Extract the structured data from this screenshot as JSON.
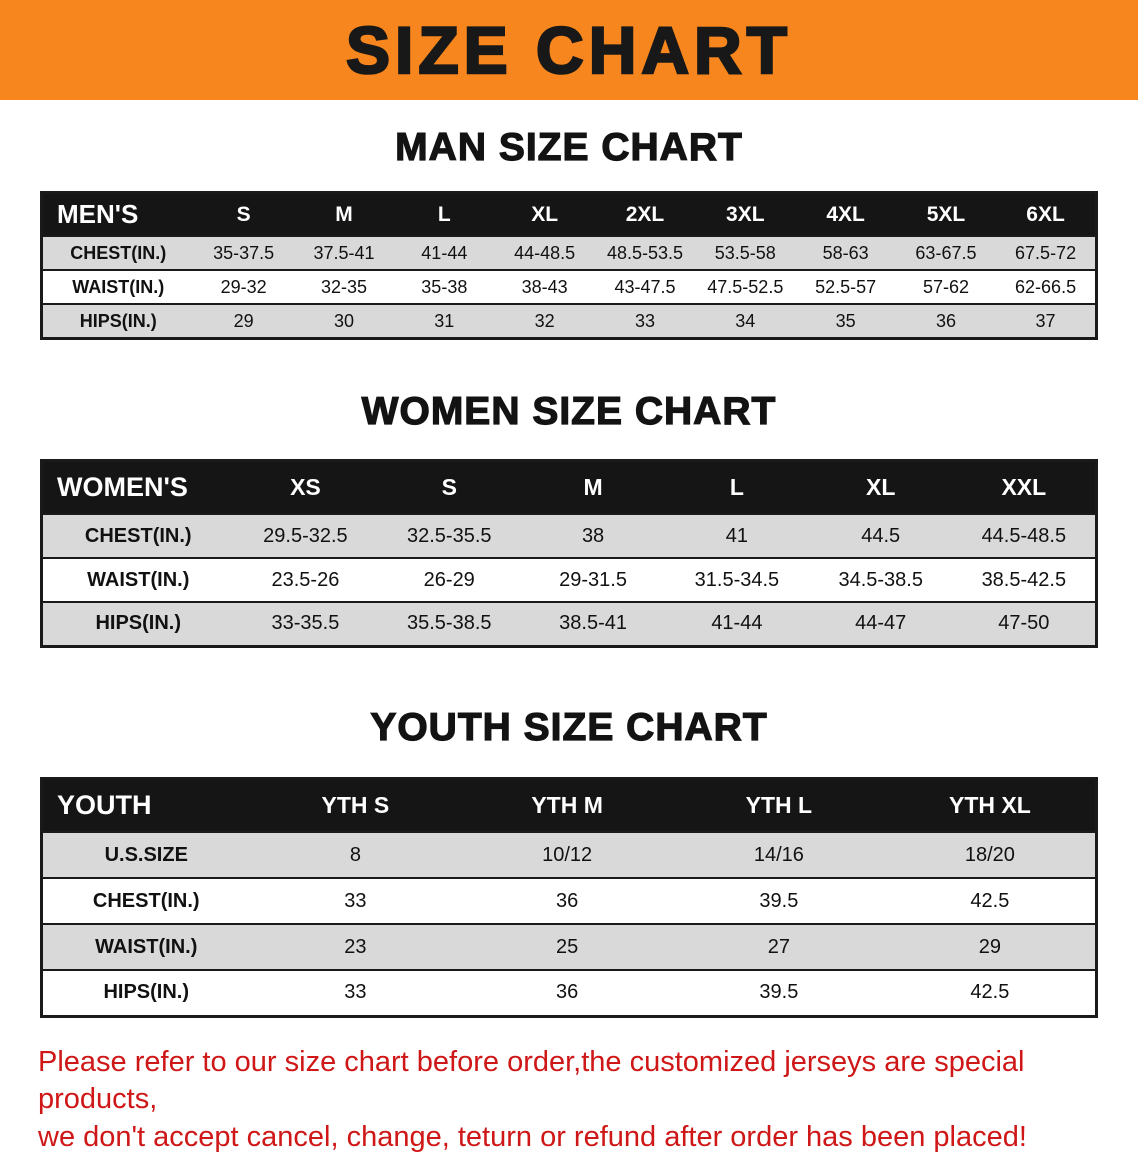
{
  "banner": {
    "title": "SIZE CHART"
  },
  "sections": [
    {
      "heading": "MAN SIZE CHART",
      "label": "MEN'S",
      "columns": [
        "S",
        "M",
        "L",
        "XL",
        "2XL",
        "3XL",
        "4XL",
        "5XL",
        "6XL"
      ],
      "rows": [
        {
          "label": "CHEST(IN.)",
          "values": [
            "35-37.5",
            "37.5-41",
            "41-44",
            "44-48.5",
            "48.5-53.5",
            "53.5-58",
            "58-63",
            "63-67.5",
            "67.5-72"
          ]
        },
        {
          "label": "WAIST(IN.)",
          "values": [
            "29-32",
            "32-35",
            "35-38",
            "38-43",
            "43-47.5",
            "47.5-52.5",
            "52.5-57",
            "57-62",
            "62-66.5"
          ]
        },
        {
          "label": "HIPS(IN.)",
          "values": [
            "29",
            "30",
            "31",
            "32",
            "33",
            "34",
            "35",
            "36",
            "37"
          ]
        }
      ]
    },
    {
      "heading": "WOMEN SIZE CHART",
      "label": "WOMEN'S",
      "columns": [
        "XS",
        "S",
        "M",
        "L",
        "XL",
        "XXL"
      ],
      "rows": [
        {
          "label": "CHEST(IN.)",
          "values": [
            "29.5-32.5",
            "32.5-35.5",
            "38",
            "41",
            "44.5",
            "44.5-48.5"
          ]
        },
        {
          "label": "WAIST(IN.)",
          "values": [
            "23.5-26",
            "26-29",
            "29-31.5",
            "31.5-34.5",
            "34.5-38.5",
            "38.5-42.5"
          ]
        },
        {
          "label": "HIPS(IN.)",
          "values": [
            "33-35.5",
            "35.5-38.5",
            "38.5-41",
            "41-44",
            "44-47",
            "47-50"
          ]
        }
      ]
    },
    {
      "heading": "YOUTH SIZE CHART",
      "label": "YOUTH",
      "columns": [
        "YTH S",
        "YTH M",
        "YTH L",
        "YTH XL"
      ],
      "rows": [
        {
          "label": "U.S.SIZE",
          "values": [
            "8",
            "10/12",
            "14/16",
            "18/20"
          ]
        },
        {
          "label": "CHEST(IN.)",
          "values": [
            "33",
            "36",
            "39.5",
            "42.5"
          ]
        },
        {
          "label": "WAIST(IN.)",
          "values": [
            "23",
            "25",
            "27",
            "29"
          ]
        },
        {
          "label": "HIPS(IN.)",
          "values": [
            "33",
            "36",
            "39.5",
            "42.5"
          ]
        }
      ]
    }
  ],
  "disclaimer": {
    "line1": "Please refer to our size chart before order,the customized jerseys are special products,",
    "line2": "we don't accept cancel, change, teturn or refund after order has been placed!"
  },
  "colors": {
    "banner-orange": "#f6861d",
    "table-header-black": "#151515",
    "row-gray": "#d9d9d9",
    "disclaimer-red": "#cf1717"
  }
}
